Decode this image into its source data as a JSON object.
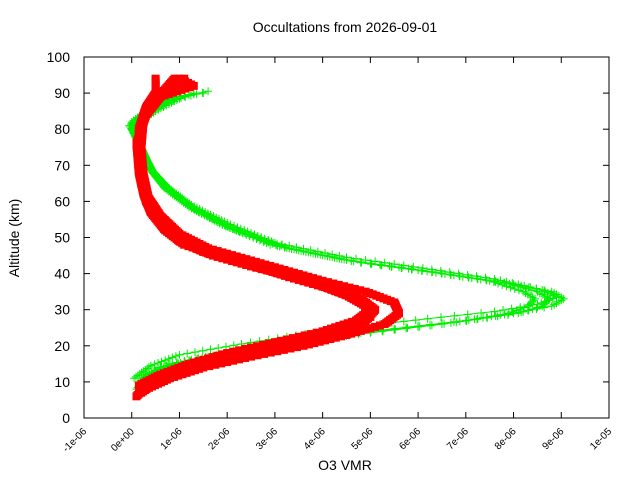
{
  "chart_data": {
    "type": "scatter",
    "title": "Occultations from 2026-09-01",
    "xlabel": "O3 VMR",
    "ylabel": "Altitude (km)",
    "xlim": [
      -1e-06,
      1e-05
    ],
    "ylim": [
      0,
      100
    ],
    "x_ticks": [
      -1e-06,
      0,
      1e-06,
      2e-06,
      3e-06,
      4e-06,
      5e-06,
      6e-06,
      7e-06,
      8e-06,
      9e-06,
      1e-05
    ],
    "x_tick_labels": [
      "-1e-06",
      "0e+00",
      "1e-06",
      "2e-06",
      "3e-06",
      "4e-06",
      "5e-06",
      "6e-06",
      "7e-06",
      "8e-06",
      "9e-06",
      "1e-05"
    ],
    "y_ticks": [
      0,
      10,
      20,
      30,
      40,
      50,
      60,
      70,
      80,
      90,
      100
    ],
    "y_tick_labels": [
      "0",
      "10",
      "20",
      "30",
      "40",
      "50",
      "60",
      "70",
      "80",
      "90",
      "100"
    ],
    "grid": false,
    "legend": "none",
    "series": [
      {
        "color": "#00ee00",
        "marker": "plus",
        "lines": true,
        "profiles": [
          [
            [
              1e-07,
              8
            ],
            [
              3e-07,
              12
            ],
            [
              8e-07,
              15
            ],
            [
              2e-06,
              18
            ],
            [
              4e-06,
              22
            ],
            [
              6.5e-06,
              26
            ],
            [
              8e-06,
              29
            ],
            [
              8.8e-06,
              31
            ],
            [
              9.05e-06,
              33
            ],
            [
              8.8e-06,
              35
            ],
            [
              8e-06,
              37
            ],
            [
              6.5e-06,
              40
            ],
            [
              4.8e-06,
              43
            ],
            [
              3.3e-06,
              47
            ],
            [
              2.2e-06,
              52
            ],
            [
              1.4e-06,
              57
            ],
            [
              9e-07,
              62
            ],
            [
              5e-07,
              67
            ],
            [
              3e-07,
              72
            ],
            [
              1e-07,
              78
            ],
            [
              0.0,
              82
            ],
            [
              4e-07,
              86
            ],
            [
              9e-07,
              89
            ],
            [
              1.5e-06,
              90
            ]
          ],
          [
            [
              2e-07,
              9
            ],
            [
              5e-07,
              13
            ],
            [
              1.2e-06,
              16
            ],
            [
              2.6e-06,
              19
            ],
            [
              4.5e-06,
              23
            ],
            [
              6.8e-06,
              26.5
            ],
            [
              8.1e-06,
              29
            ],
            [
              8.6e-06,
              31
            ],
            [
              8.75e-06,
              33
            ],
            [
              8.5e-06,
              35
            ],
            [
              7.8e-06,
              37.5
            ],
            [
              6.3e-06,
              40.5
            ],
            [
              4.6e-06,
              43.5
            ],
            [
              3.1e-06,
              47.5
            ],
            [
              2e-06,
              53
            ],
            [
              1.3e-06,
              58
            ],
            [
              8e-07,
              63
            ],
            [
              4.5e-07,
              68
            ],
            [
              2.5e-07,
              73
            ],
            [
              5e-08,
              79
            ],
            [
              -5e-08,
              81
            ],
            [
              3e-07,
              85
            ],
            [
              8e-07,
              88
            ],
            [
              1.3e-06,
              90
            ]
          ],
          [
            [
              1.5e-07,
              10
            ],
            [
              6e-07,
              14
            ],
            [
              1.6e-06,
              17
            ],
            [
              3e-06,
              20
            ],
            [
              5e-06,
              24
            ],
            [
              7e-06,
              27
            ],
            [
              7.9e-06,
              29
            ],
            [
              8.3e-06,
              31
            ],
            [
              8.45e-06,
              33
            ],
            [
              8.2e-06,
              35
            ],
            [
              7.5e-06,
              38
            ],
            [
              6e-06,
              41
            ],
            [
              4.4e-06,
              44
            ],
            [
              2.9e-06,
              48
            ],
            [
              1.9e-06,
              53.5
            ],
            [
              1.2e-06,
              58.5
            ],
            [
              7e-07,
              63.5
            ],
            [
              4e-07,
              68.5
            ],
            [
              2e-07,
              74
            ],
            [
              0.0,
              80
            ],
            [
              2e-07,
              84
            ],
            [
              7e-07,
              87
            ],
            [
              1.2e-06,
              89.5
            ]
          ],
          [
            [
              5e-08,
              11
            ],
            [
              4e-07,
              14.5
            ],
            [
              1e-06,
              17.5
            ],
            [
              2.3e-06,
              20.5
            ],
            [
              4.2e-06,
              24.5
            ],
            [
              6.2e-06,
              27.5
            ],
            [
              7.6e-06,
              29.5
            ],
            [
              8.5e-06,
              31.5
            ],
            [
              8.9e-06,
              33.5
            ],
            [
              8.6e-06,
              35.5
            ],
            [
              7.6e-06,
              38.5
            ],
            [
              6.1e-06,
              41.5
            ],
            [
              4.5e-06,
              44.5
            ],
            [
              3e-06,
              48.5
            ],
            [
              2e-06,
              54
            ],
            [
              1.25e-06,
              59
            ],
            [
              7.5e-07,
              64
            ],
            [
              4e-07,
              69
            ],
            [
              2e-07,
              75
            ],
            [
              2e-08,
              80.5
            ],
            [
              5e-07,
              85
            ],
            [
              1e-06,
              88.5
            ],
            [
              1.6e-06,
              90.5
            ]
          ]
        ]
      },
      {
        "color": "#ff0000",
        "marker": "square",
        "lines": false,
        "profiles": [
          [
            [
              1e-07,
              6
            ],
            [
              3e-07,
              9
            ],
            [
              7e-07,
              12
            ],
            [
              1.3e-06,
              15
            ],
            [
              2.2e-06,
              18
            ],
            [
              3.3e-06,
              21
            ],
            [
              4.3e-06,
              24
            ],
            [
              4.9e-06,
              27
            ],
            [
              5.1e-06,
              30
            ],
            [
              4.8e-06,
              33
            ],
            [
              4.2e-06,
              36
            ],
            [
              3.4e-06,
              39
            ],
            [
              2.5e-06,
              42
            ],
            [
              1.7e-06,
              45
            ],
            [
              1e-06,
              49
            ],
            [
              6e-07,
              54
            ],
            [
              3.5e-07,
              59
            ],
            [
              2e-07,
              65
            ],
            [
              1.5e-07,
              72
            ],
            [
              1.5e-07,
              80
            ],
            [
              3e-07,
              86
            ],
            [
              5e-07,
              90
            ],
            [
              5e-07,
              94
            ]
          ],
          [
            [
              2e-07,
              7
            ],
            [
              5e-07,
              10
            ],
            [
              1e-06,
              13
            ],
            [
              1.8e-06,
              16
            ],
            [
              2.8e-06,
              19
            ],
            [
              3.8e-06,
              22
            ],
            [
              4.6e-06,
              25
            ],
            [
              5e-06,
              28
            ],
            [
              4.9e-06,
              31
            ],
            [
              4.5e-06,
              34
            ],
            [
              3.9e-06,
              37
            ],
            [
              3.1e-06,
              40
            ],
            [
              2.3e-06,
              43
            ],
            [
              1.5e-06,
              46
            ],
            [
              9e-07,
              50
            ],
            [
              5.5e-07,
              55
            ],
            [
              3e-07,
              60
            ],
            [
              2e-07,
              66
            ],
            [
              1.5e-07,
              74
            ],
            [
              2e-07,
              82
            ],
            [
              4e-07,
              87
            ],
            [
              7e-07,
              91
            ],
            [
              9e-07,
              94
            ]
          ],
          [
            [
              3e-07,
              8
            ],
            [
              8e-07,
              11
            ],
            [
              1.5e-06,
              14
            ],
            [
              2.5e-06,
              17
            ],
            [
              3.6e-06,
              20
            ],
            [
              4.5e-06,
              23
            ],
            [
              5.3e-06,
              26
            ],
            [
              5.6e-06,
              29
            ],
            [
              5.5e-06,
              32
            ],
            [
              4.9e-06,
              35
            ],
            [
              4e-06,
              38
            ],
            [
              3.2e-06,
              41
            ],
            [
              2.4e-06,
              44
            ],
            [
              1.6e-06,
              47
            ],
            [
              1e-06,
              51
            ],
            [
              6e-07,
              56
            ],
            [
              3.5e-07,
              61
            ],
            [
              2.5e-07,
              67
            ],
            [
              2e-07,
              75
            ],
            [
              2.5e-07,
              83
            ],
            [
              5e-07,
              88
            ],
            [
              9e-07,
              92
            ],
            [
              1.1e-06,
              94
            ]
          ],
          [
            [
              1.5e-07,
              9
            ],
            [
              6e-07,
              12
            ],
            [
              1.2e-06,
              15
            ],
            [
              2e-06,
              18
            ],
            [
              3e-06,
              21
            ],
            [
              4e-06,
              24
            ],
            [
              4.7e-06,
              27
            ],
            [
              5e-06,
              30
            ],
            [
              4.7e-06,
              33
            ],
            [
              4.1e-06,
              36
            ],
            [
              3.3e-06,
              39
            ],
            [
              2.6e-06,
              42
            ],
            [
              1.8e-06,
              45
            ],
            [
              1.1e-06,
              48
            ],
            [
              7e-07,
              52
            ],
            [
              4e-07,
              57
            ],
            [
              2.5e-07,
              62
            ],
            [
              1.5e-07,
              68
            ],
            [
              1e-07,
              76
            ],
            [
              3e-07,
              84
            ],
            [
              6e-07,
              89
            ],
            [
              1.3e-06,
              92
            ],
            [
              1e-06,
              94
            ]
          ]
        ]
      }
    ]
  }
}
